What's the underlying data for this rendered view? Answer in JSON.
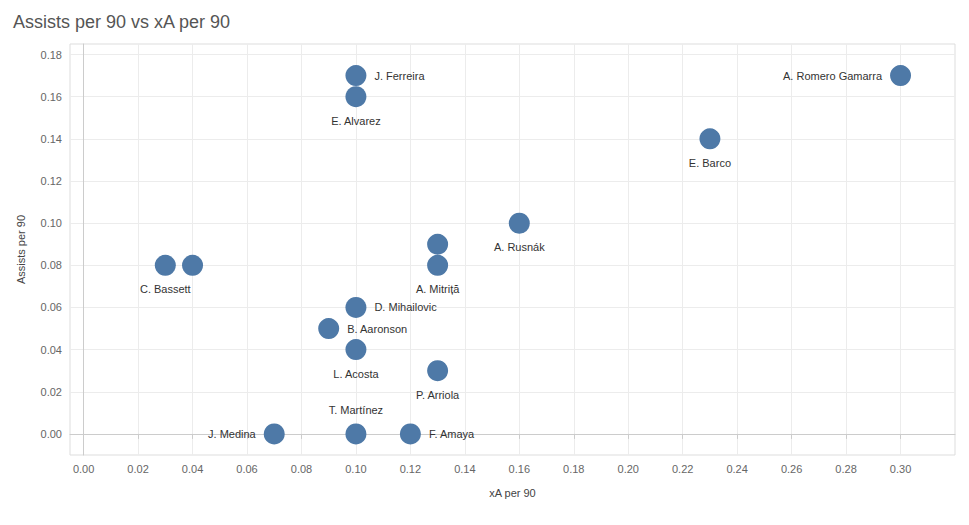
{
  "chart_data": {
    "type": "scatter",
    "title": "Assists per 90 vs xA per 90",
    "x_label": "xA per 90",
    "y_label": "Assists per 90",
    "color": "#4e79a7",
    "grid": true,
    "labels": [
      "J. Ferreira",
      "E. Alvarez",
      "A. Romero Gamarra",
      "E. Barco",
      "A. Rusnák",
      null,
      "A. Mitriță",
      "C. Bassett",
      null,
      "D. Mihailovic",
      "B. Aaronson",
      "L. Acosta",
      "P. Arriola",
      "J. Medina",
      "T. Martínez",
      "F. Amaya"
    ],
    "x": [
      0.1,
      0.1,
      0.3,
      0.23,
      0.16,
      0.13,
      0.13,
      0.03,
      0.04,
      0.1,
      0.09,
      0.1,
      0.13,
      0.07,
      0.1,
      0.12
    ],
    "values": [
      0.17,
      0.16,
      0.17,
      0.14,
      0.1,
      0.09,
      0.08,
      0.08,
      0.08,
      0.06,
      0.05,
      0.04,
      0.03,
      0.0,
      0.0,
      0.0
    ],
    "xlim": [
      -0.005,
      0.32
    ],
    "xticks": [
      {
        "value": 0,
        "label": "0.00"
      },
      {
        "value": 0.02,
        "label": "0.02"
      },
      {
        "value": 0.04,
        "label": "0.04"
      },
      {
        "value": 0.06,
        "label": "0.06"
      },
      {
        "value": 0.08,
        "label": "0.08"
      },
      {
        "value": 0.1,
        "label": "0.10"
      },
      {
        "value": 0.12,
        "label": "0.12"
      },
      {
        "value": 0.14,
        "label": "0.14"
      },
      {
        "value": 0.16,
        "label": "0.16"
      },
      {
        "value": 0.18,
        "label": "0.18"
      },
      {
        "value": 0.2,
        "label": "0.20"
      },
      {
        "value": 0.22,
        "label": "0.22"
      },
      {
        "value": 0.24,
        "label": "0.24"
      },
      {
        "value": 0.26,
        "label": "0.26"
      },
      {
        "value": 0.28,
        "label": "0.28"
      },
      {
        "value": 0.3,
        "label": "0.30"
      }
    ],
    "ylim": [
      -0.01,
      0.185
    ],
    "yticks": [
      {
        "value": 0,
        "label": "0.00"
      },
      {
        "value": 0.02,
        "label": "0.02"
      },
      {
        "value": 0.04,
        "label": "0.04"
      },
      {
        "value": 0.06,
        "label": "0.06"
      },
      {
        "value": 0.08,
        "label": "0.08"
      },
      {
        "value": 0.1,
        "label": "0.10"
      },
      {
        "value": 0.12,
        "label": "0.12"
      },
      {
        "value": 0.14,
        "label": "0.14"
      },
      {
        "value": 0.16,
        "label": "0.16"
      },
      {
        "value": 0.18,
        "label": "0.18"
      }
    ]
  }
}
